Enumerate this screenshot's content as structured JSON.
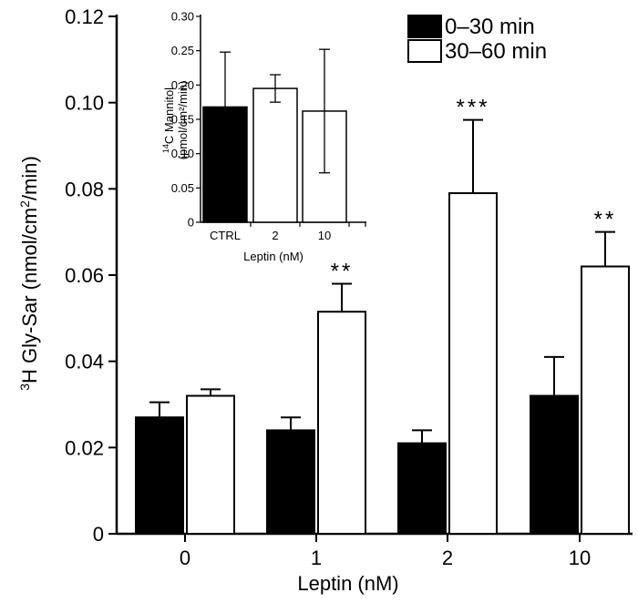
{
  "chart_data": [
    {
      "type": "bar",
      "ylabel_sup": "3",
      "ylabel_main": "H Gly-Sar (nmol/cm",
      "ylabel_sup2": "2",
      "ylabel_tail": "/min)",
      "xlabel": "Leptin (nM)",
      "categories": [
        "0",
        "1",
        "2",
        "10"
      ],
      "ylim": [
        0,
        0.12
      ],
      "yticks": [
        "0",
        "0.02",
        "0.04",
        "0.06",
        "0.08",
        "0.10",
        "0.12"
      ],
      "series": [
        {
          "name": "0–30 min",
          "color": "#000000",
          "values": [
            0.027,
            0.024,
            0.021,
            0.032
          ],
          "errors": [
            0.0035,
            0.003,
            0.003,
            0.009
          ]
        },
        {
          "name": "30–60 min",
          "color": "#ffffff",
          "values": [
            0.032,
            0.0515,
            0.079,
            0.062
          ],
          "errors": [
            0.0015,
            0.0065,
            0.017,
            0.008
          ]
        }
      ],
      "significance": [
        "",
        "**",
        "***",
        "**"
      ],
      "legend_position": "top-right"
    },
    {
      "type": "bar",
      "ylabel_sup": "14",
      "ylabel_line1": "C Mannitol",
      "ylabel_line2": "(pmol/cm²/min)",
      "xlabel": "Leptin (nM)",
      "categories": [
        "CTRL",
        "2",
        "10"
      ],
      "ylim": [
        0,
        0.3
      ],
      "yticks": [
        "0",
        "0.05",
        "0.10",
        "0.15",
        "0.20",
        "0.25",
        "0.30"
      ],
      "values": [
        0.168,
        0.195,
        0.162
      ],
      "errors": [
        0.08,
        0.02,
        0.09
      ],
      "colors": [
        "#000000",
        "#ffffff",
        "#ffffff"
      ]
    }
  ]
}
